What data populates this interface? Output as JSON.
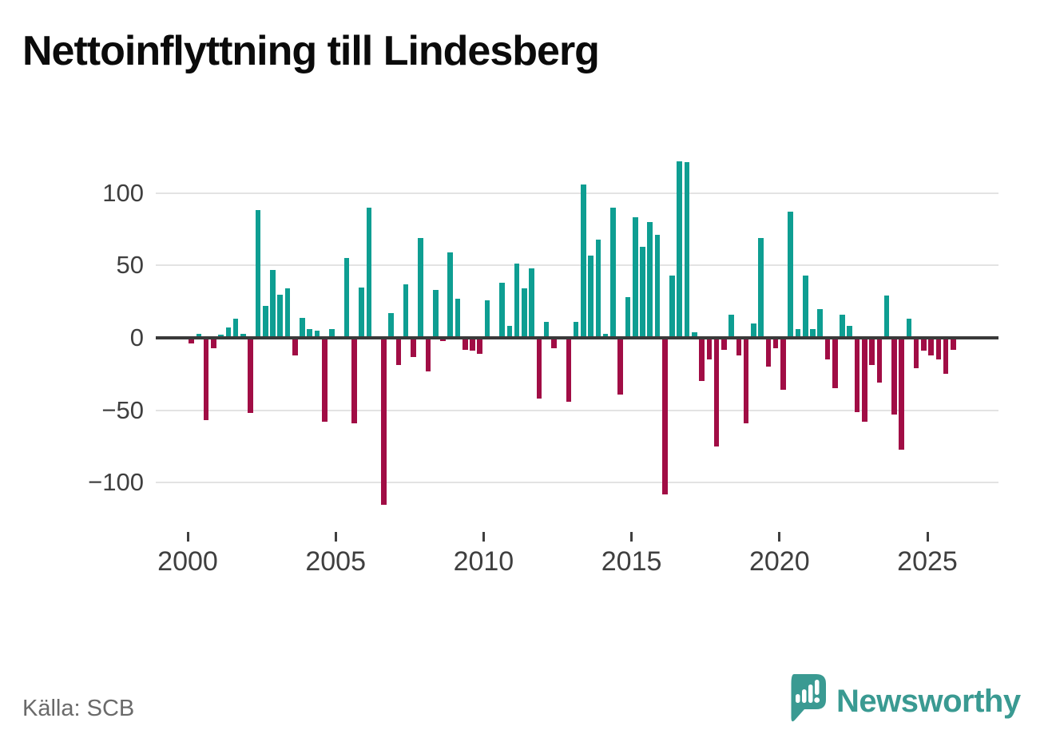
{
  "header": {
    "title": "Nettoinflyttning till Lindesberg"
  },
  "footer": {
    "source_label": "Källa: SCB",
    "brand_name": "Newsworthy"
  },
  "icons": {
    "newsworthy_logo": "teal speech-bubble containing white mini bar-chart and exclamation mark"
  },
  "colors": {
    "positive_bar": "#0E9E92",
    "negative_bar": "#A10D45",
    "zero_axis": "#3A3A3A",
    "gridline": "#E3E3E3",
    "tick_text": "#3F3F3F",
    "title_text": "#0B0B0B",
    "source_text": "#6A6A6A",
    "brand_teal": "#3A9A92",
    "background": "#FFFFFF"
  },
  "chart_data": {
    "type": "bar",
    "title": "Nettoinflyttning till Lindesberg",
    "frequency": "quarterly",
    "first_period": "2000 Q1",
    "last_period": "2025 Q4",
    "x_tick_labels": [
      "2000",
      "2005",
      "2010",
      "2015",
      "2020",
      "2025"
    ],
    "y_tick_values": [
      100,
      50,
      0,
      -50,
      -100
    ],
    "ylim": [
      -128,
      128
    ],
    "grid": "horizontal-only",
    "legend": "none",
    "positive_color": "#0E9E92",
    "negative_color": "#A10D45",
    "values_by_year": {
      "2000": [
        -4,
        3,
        -57,
        -7
      ],
      "2001": [
        2,
        7,
        13,
        3
      ],
      "2002": [
        -52,
        88,
        22,
        47
      ],
      "2003": [
        30,
        34,
        -12,
        14
      ],
      "2004": [
        6,
        5,
        -58,
        6
      ],
      "2005": [
        0,
        55,
        -59,
        35
      ],
      "2006": [
        90,
        0,
        -115,
        17
      ],
      "2007": [
        -19,
        37,
        -13,
        69
      ],
      "2008": [
        -23,
        33,
        -2,
        59
      ],
      "2009": [
        27,
        -8,
        -9,
        -11
      ],
      "2010": [
        26,
        0,
        38,
        8
      ],
      "2011": [
        51,
        34,
        48,
        -42
      ],
      "2012": [
        11,
        -7,
        0,
        -44
      ],
      "2013": [
        11,
        106,
        57,
        68
      ],
      "2014": [
        3,
        90,
        -39,
        28
      ],
      "2015": [
        83,
        63,
        80,
        71
      ],
      "2016": [
        -108,
        43,
        122,
        121
      ],
      "2017": [
        4,
        -30,
        -15,
        -75
      ],
      "2018": [
        -8,
        16,
        -12,
        -59
      ],
      "2019": [
        10,
        69,
        -20,
        -7
      ],
      "2020": [
        -36,
        87,
        6,
        43
      ],
      "2021": [
        6,
        20,
        -15,
        -35
      ],
      "2022": [
        16,
        8,
        -51,
        -58
      ],
      "2023": [
        -19,
        -31,
        29,
        -53
      ],
      "2024": [
        -77,
        13,
        -21,
        -9
      ],
      "2025": [
        -12,
        -15,
        -25,
        -8
      ]
    }
  }
}
